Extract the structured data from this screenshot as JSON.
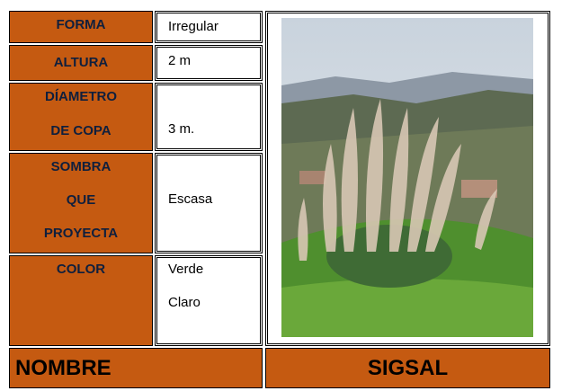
{
  "table": {
    "rows": [
      {
        "label": [
          "FORMA"
        ],
        "value": [
          "Irregular"
        ]
      },
      {
        "label": [
          "ALTURA"
        ],
        "value": [
          "2 m"
        ]
      },
      {
        "label": [
          "DÍAMETRO",
          "DE COPA"
        ],
        "value": [
          "3 m."
        ]
      },
      {
        "label": [
          "SOMBRA",
          "QUE",
          "PROYECTA"
        ],
        "value": [
          "Escasa"
        ]
      },
      {
        "label": [
          "COLOR"
        ],
        "value": [
          "Verde",
          "Claro"
        ]
      }
    ],
    "footer": {
      "label": "NOMBRE",
      "value": "SIGSAL"
    }
  }
}
